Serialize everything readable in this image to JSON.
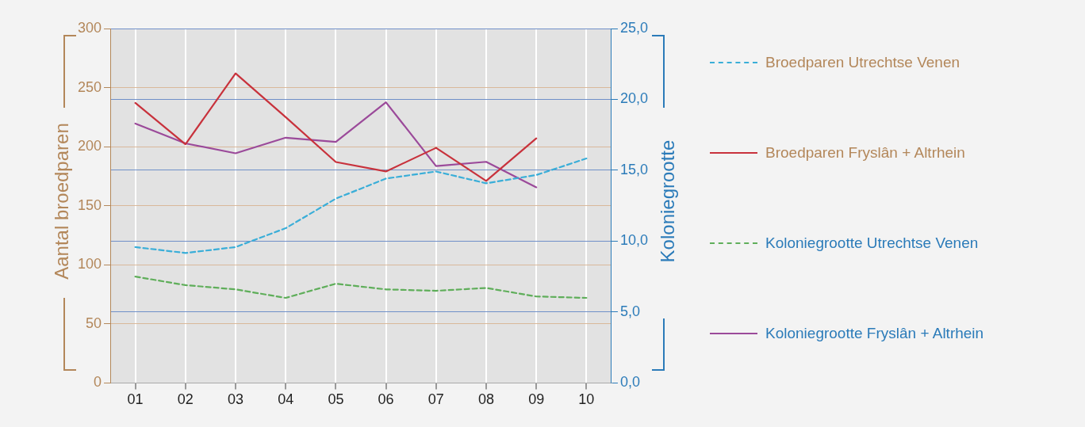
{
  "chart_data": {
    "type": "line",
    "categories": [
      "01",
      "02",
      "03",
      "04",
      "05",
      "06",
      "07",
      "08",
      "09",
      "10"
    ],
    "ylabel": "Aantal broedparen",
    "y2label": "Koloniegrootte",
    "ylim": [
      0,
      300
    ],
    "yticks": [
      0,
      50,
      100,
      150,
      200,
      250,
      300
    ],
    "y2lim": [
      0,
      25
    ],
    "y2ticks": [
      {
        "value": 0,
        "label": "0,0"
      },
      {
        "value": 5,
        "label": "5,0"
      },
      {
        "value": 10,
        "label": "10,0"
      },
      {
        "value": 15,
        "label": "15,0"
      },
      {
        "value": 20,
        "label": "20,0"
      },
      {
        "value": 25,
        "label": "25,0"
      }
    ],
    "grid": true,
    "legend": "right",
    "marker": "none",
    "series": [
      {
        "name": "Broedparen Utrechtse Venen",
        "color": "#3aaed8",
        "line_style": "dashed",
        "values": [
          115,
          110,
          115,
          131,
          156,
          173,
          179,
          169,
          176,
          190
        ]
      },
      {
        "name": "Broedparen Fryslân + Altrhein",
        "color": "#c8323c",
        "line_style": "solid",
        "values": [
          237,
          202,
          262,
          225,
          187,
          179,
          199,
          171,
          207,
          null
        ]
      },
      {
        "name": "Koloniegrootte Utrechtse Venen",
        "color": "#5fae5a",
        "line_style": "dashed",
        "axis": "y2",
        "values": [
          7.5,
          6.9,
          6.6,
          6.0,
          7.0,
          6.6,
          6.5,
          6.7,
          6.1,
          6.0
        ]
      },
      {
        "name": "Koloniegrootte Fryslân + Altrhein",
        "color": "#9b4a9a",
        "line_style": "solid",
        "axis": "y2",
        "values": [
          18.3,
          16.9,
          16.2,
          17.3,
          17.0,
          19.8,
          15.3,
          15.6,
          13.8,
          null
        ]
      }
    ]
  }
}
